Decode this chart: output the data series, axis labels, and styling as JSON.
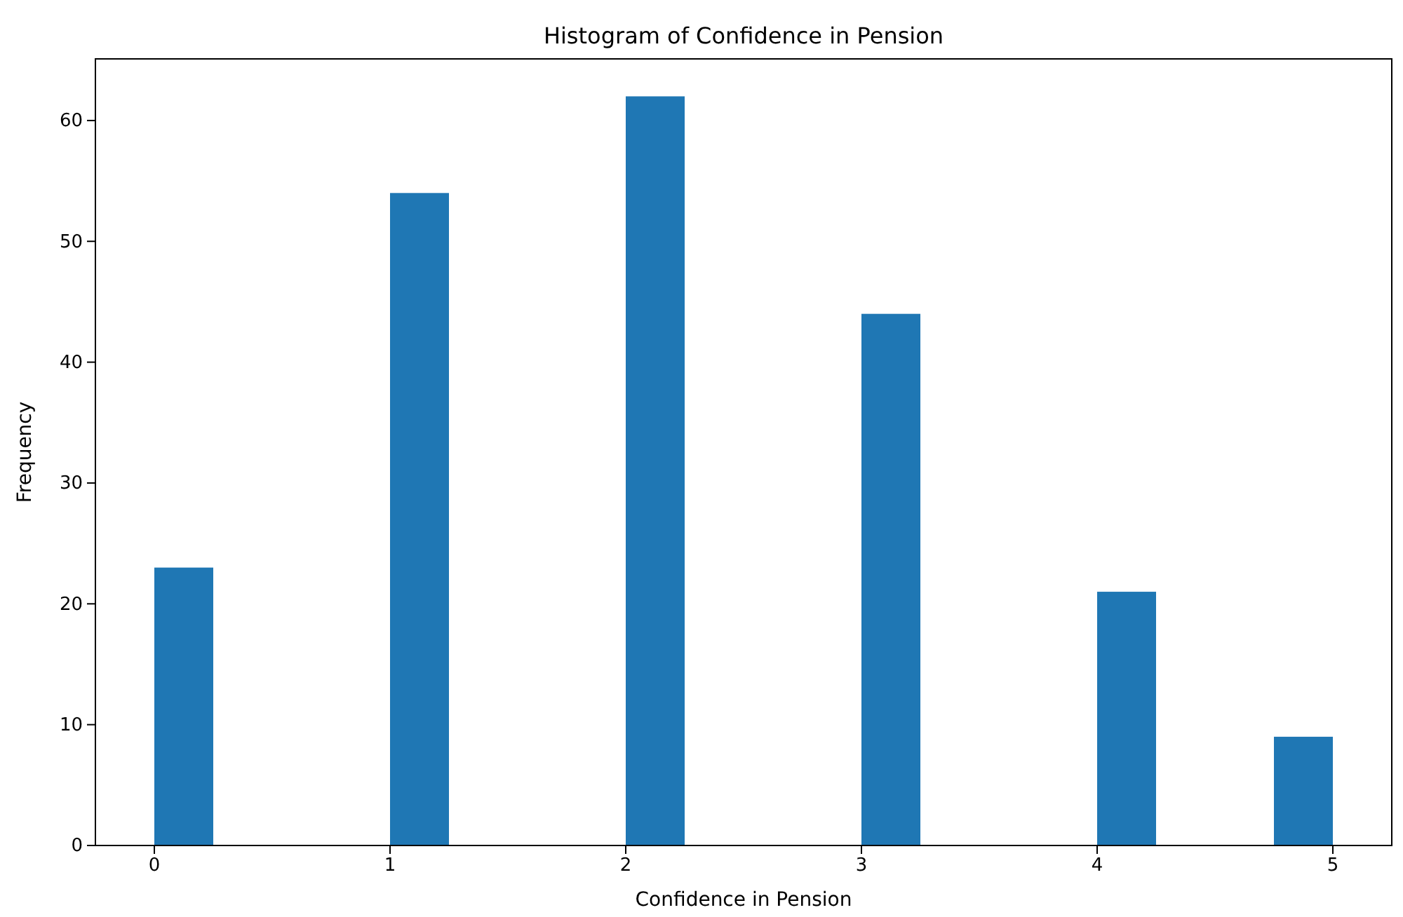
{
  "chart_data": {
    "type": "histogram",
    "title": "Histogram of Confidence in Pension",
    "xlabel": "Confidence in Pension",
    "ylabel": "Frequency",
    "bins": [
      0,
      0.25,
      0.5,
      0.75,
      1,
      1.25,
      1.5,
      1.75,
      2,
      2.25,
      2.5,
      2.75,
      3,
      3.25,
      3.5,
      3.75,
      4,
      4.25,
      4.5,
      4.75,
      5
    ],
    "values": [
      23,
      0,
      0,
      0,
      54,
      0,
      0,
      0,
      62,
      0,
      0,
      0,
      44,
      0,
      0,
      0,
      21,
      0,
      0,
      9
    ],
    "color": "#1f77b4",
    "xlim": [
      -0.25,
      5.25
    ],
    "xticks": [
      0,
      1,
      2,
      3,
      4,
      5
    ],
    "ylim": [
      0,
      65.1
    ],
    "yticks": [
      0,
      10,
      20,
      30,
      40,
      50,
      60
    ],
    "grid": false
  }
}
